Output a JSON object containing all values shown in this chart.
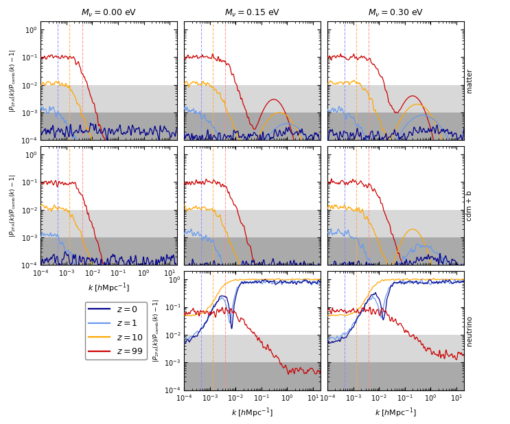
{
  "col_titles": [
    "$M_\\nu = 0.00$ eV",
    "$M_\\nu = 0.15$ eV",
    "$M_\\nu = 0.30$ eV"
  ],
  "row_labels": [
    "matter",
    "cdm + b",
    "neutrino"
  ],
  "legend_labels": [
    "$z = 0$",
    "$z = 1$",
    "$z = 10$",
    "$z = 99$"
  ],
  "line_colors": [
    "#00008B",
    "#6699EE",
    "#FFA500",
    "#CC0000"
  ],
  "xlim": [
    0.0001,
    20
  ],
  "ylim": [
    0.0001,
    2.0
  ],
  "shade_light": [
    0.001,
    0.01
  ],
  "shade_dark": [
    0.0001,
    0.001
  ],
  "xlabel": "$k\\;[h\\mathrm{Mpc}^{-1}]$",
  "ylabel": "$|P_{\\mathrm{2FA}}(k)/P_{\\mathrm{camb}}(k) - 1|$",
  "ylabel_nu": "$|P_{\\mathrm{2FA}}(k)/P_{\\mathrm{camb}}(k) - 1|$",
  "vlines": {
    "col0": {
      "blue": 0.00045,
      "orange": 0.0013,
      "red": 0.004
    },
    "col1": {
      "blue": 0.00045,
      "orange": 0.0013,
      "red": 0.004
    },
    "col2": {
      "blue": 0.00045,
      "orange": 0.0013,
      "red": 0.004
    }
  },
  "vline_colors": [
    "#8888FF",
    "#FFAA44",
    "#FF8888"
  ],
  "shade_light_color": "#D8D8D8",
  "shade_dark_color": "#AAAAAA",
  "background_color": "white",
  "title_fontsize": 9,
  "label_fontsize": 8,
  "tick_fontsize": 7,
  "lw": 0.9
}
